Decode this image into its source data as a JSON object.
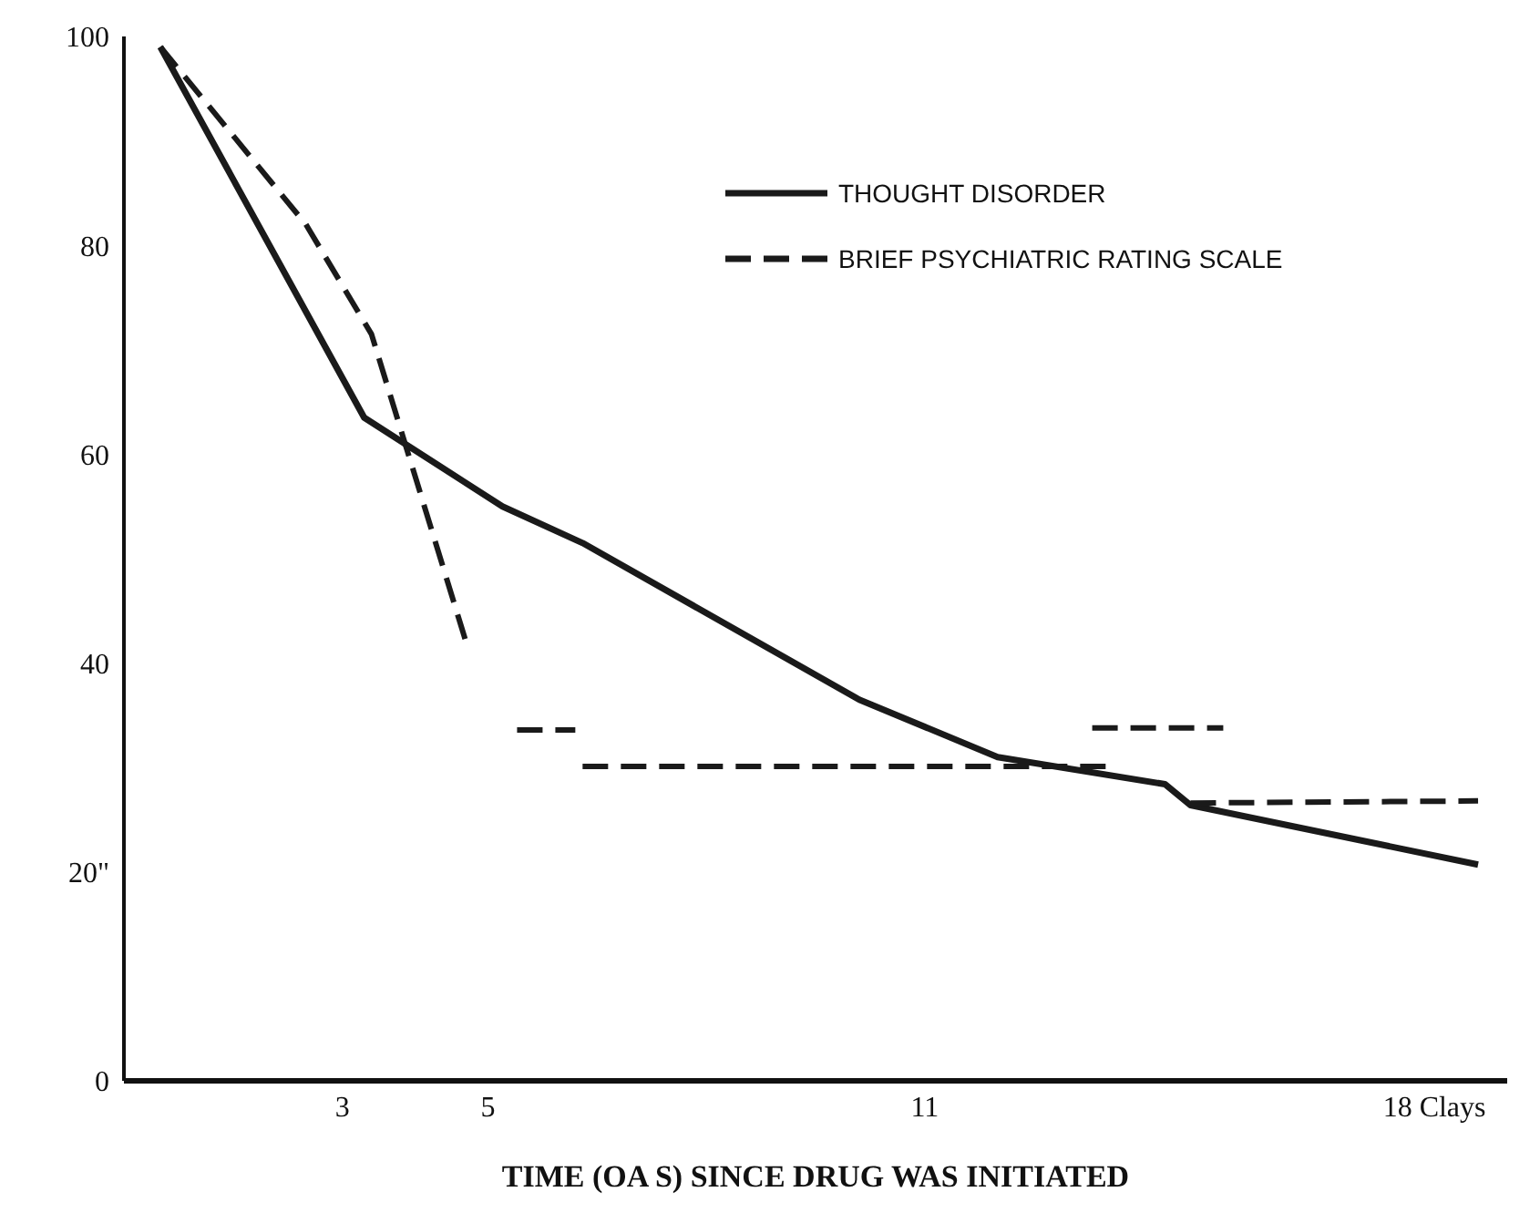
{
  "chart_data": {
    "type": "line",
    "xlabel": "TIME (OA S)  SINCE  DRUG WAS INITIATED",
    "xlim": [
      0,
      19
    ],
    "xticks": [
      3,
      5,
      11,
      {
        "value": 18,
        "label": "18 Clays"
      }
    ],
    "ylim": [
      0,
      100
    ],
    "yticks": [
      0,
      {
        "value": 20,
        "label": "20\""
      },
      40,
      60,
      80,
      100
    ],
    "grid": false,
    "legend": "top right",
    "marker": "none",
    "series": [
      {
        "name": "THOUGHT DISORDER",
        "color": "#1a1a1a",
        "line_style": "solid",
        "x": [
          0.5,
          3.3,
          5.2,
          6.3,
          10.1,
          12.0,
          14.3,
          14.65,
          18.6
        ],
        "values": [
          99,
          63.5,
          55,
          51.5,
          36.5,
          31,
          28.4,
          26.4,
          20.7
        ]
      },
      {
        "name": "BRIEF PSYCHIATRIC RATING SCALE",
        "color": "#1a1a1a",
        "line_style": "dashed",
        "x": [
          0.5,
          2.5,
          3.4,
          4.7
        ],
        "values": [
          99,
          82,
          71.5,
          42
        ]
      },
      {
        "color": "#1a1a1a",
        "line_style": "dashed",
        "x": [
          5.4,
          6.2
        ],
        "values": [
          33.6,
          33.6
        ]
      },
      {
        "color": "#1a1a1a",
        "line_style": "dashed",
        "x": [
          6.3,
          13.6
        ],
        "values": [
          30.1,
          30.1
        ]
      },
      {
        "color": "#1a1a1a",
        "line_style": "dashed",
        "x": [
          13.3,
          15.1
        ],
        "values": [
          33.8,
          33.8
        ]
      },
      {
        "color": "#1a1a1a",
        "line_style": "dashed",
        "x": [
          14.65,
          18.6
        ],
        "values": [
          26.6,
          26.8
        ]
      }
    ]
  }
}
